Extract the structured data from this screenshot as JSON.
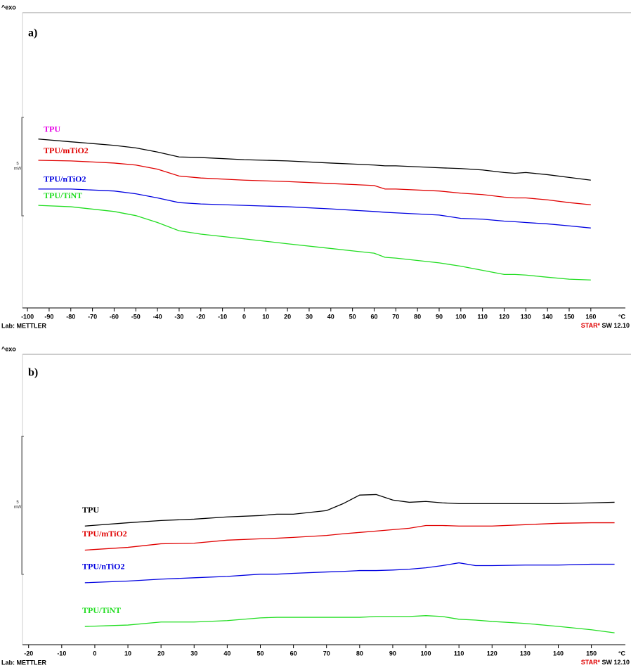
{
  "chart_data": [
    {
      "type": "line",
      "title": "a)",
      "top_label": "^exo",
      "x_unit": "°C",
      "footer_left": "Lab: METTLER",
      "footer_right": {
        "brand": "STAR",
        "superscript": "e",
        "text": "SW 12.10"
      },
      "scale_bar": {
        "value": 5,
        "unit": "mW"
      },
      "xlim": [
        -101,
        174
      ],
      "ylim": [
        0,
        15
      ],
      "xticks": [
        -100,
        -90,
        -80,
        -70,
        -60,
        -50,
        -40,
        -30,
        -20,
        -10,
        0,
        10,
        20,
        30,
        40,
        50,
        60,
        70,
        80,
        90,
        100,
        110,
        120,
        130,
        140,
        150,
        160
      ],
      "x": [
        -95,
        -80,
        -60,
        -50,
        -40,
        -30,
        -20,
        0,
        20,
        40,
        60,
        65,
        70,
        90,
        100,
        110,
        120,
        125,
        130,
        140,
        150,
        160
      ],
      "series": [
        {
          "name": "TPU",
          "color": "#000000",
          "label_color": "#e600e6",
          "values": [
            8.58,
            8.44,
            8.26,
            8.13,
            7.92,
            7.67,
            7.64,
            7.53,
            7.47,
            7.36,
            7.26,
            7.22,
            7.22,
            7.12,
            7.08,
            7.01,
            6.88,
            6.84,
            6.88,
            6.77,
            6.63,
            6.49
          ]
        },
        {
          "name": "TPU/mTiO2",
          "color": "#e00000",
          "label_color": "#e00000",
          "values": [
            7.5,
            7.47,
            7.36,
            7.26,
            7.05,
            6.7,
            6.6,
            6.49,
            6.42,
            6.32,
            6.22,
            6.04,
            6.04,
            5.94,
            5.83,
            5.76,
            5.63,
            5.59,
            5.59,
            5.49,
            5.35,
            5.24
          ]
        },
        {
          "name": "TPU/nTiO2",
          "color": "#0000e0",
          "label_color": "#0000e0",
          "values": [
            6.04,
            6.04,
            5.94,
            5.8,
            5.59,
            5.35,
            5.28,
            5.21,
            5.14,
            5.03,
            4.9,
            4.86,
            4.83,
            4.72,
            4.55,
            4.51,
            4.41,
            4.38,
            4.34,
            4.27,
            4.17,
            4.06
          ]
        },
        {
          "name": "TPU/TiNT",
          "color": "#22dd22",
          "label_color": "#22dd22",
          "values": [
            5.21,
            5.14,
            4.9,
            4.69,
            4.34,
            3.92,
            3.75,
            3.51,
            3.26,
            3.02,
            2.78,
            2.57,
            2.53,
            2.29,
            2.12,
            1.91,
            1.7,
            1.7,
            1.67,
            1.56,
            1.46,
            1.42
          ]
        }
      ]
    },
    {
      "type": "line",
      "title": "b)",
      "top_label": "^exo",
      "x_unit": "°C",
      "footer_left": "Lab: METTLER",
      "footer_right": {
        "brand": "STAR",
        "superscript": "e",
        "text": "SW 12.10"
      },
      "scale_bar": {
        "value": 5,
        "unit": "mW"
      },
      "xlim": [
        -21,
        159
      ],
      "ylim": [
        0,
        10.5
      ],
      "xticks": [
        -20,
        -10,
        0,
        10,
        20,
        30,
        40,
        50,
        60,
        70,
        80,
        90,
        100,
        110,
        120,
        130,
        140,
        150
      ],
      "x": [
        -3,
        10,
        20,
        30,
        40,
        50,
        55,
        60,
        70,
        75,
        80,
        85,
        90,
        95,
        100,
        105,
        110,
        115,
        120,
        130,
        140,
        150,
        157
      ],
      "series": [
        {
          "name": "TPU",
          "color": "#000000",
          "label_color": "#000000",
          "values": [
            4.29,
            4.41,
            4.49,
            4.54,
            4.62,
            4.67,
            4.72,
            4.72,
            4.85,
            5.1,
            5.41,
            5.43,
            5.23,
            5.15,
            5.18,
            5.13,
            5.1,
            5.1,
            5.1,
            5.1,
            5.1,
            5.13,
            5.15
          ]
        },
        {
          "name": "TPU/mTiO2",
          "color": "#e00000",
          "label_color": "#e00000",
          "values": [
            3.42,
            3.52,
            3.65,
            3.67,
            3.78,
            3.83,
            3.85,
            3.88,
            3.95,
            4.01,
            4.06,
            4.11,
            4.16,
            4.21,
            4.31,
            4.31,
            4.29,
            4.29,
            4.29,
            4.34,
            4.39,
            4.41,
            4.41
          ]
        },
        {
          "name": "TPU/nTiO2",
          "color": "#0000e0",
          "label_color": "#0000e0",
          "values": [
            2.24,
            2.3,
            2.37,
            2.42,
            2.47,
            2.55,
            2.55,
            2.58,
            2.63,
            2.65,
            2.68,
            2.68,
            2.7,
            2.73,
            2.78,
            2.86,
            2.96,
            2.86,
            2.86,
            2.88,
            2.88,
            2.91,
            2.91
          ]
        },
        {
          "name": "TPU/TiNT",
          "color": "#22dd22",
          "label_color": "#22dd22",
          "values": [
            0.66,
            0.71,
            0.82,
            0.82,
            0.87,
            0.97,
            0.99,
            0.99,
            0.99,
            0.99,
            0.99,
            1.02,
            1.02,
            1.02,
            1.05,
            1.02,
            0.92,
            0.89,
            0.84,
            0.77,
            0.66,
            0.54,
            0.43
          ]
        }
      ]
    }
  ]
}
